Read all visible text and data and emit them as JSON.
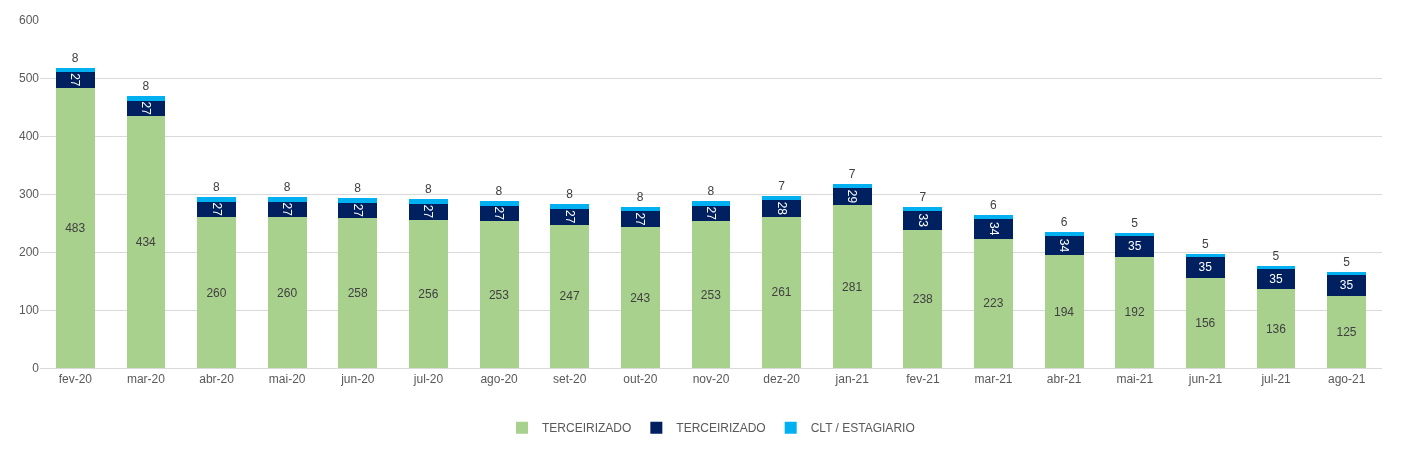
{
  "chart_data": {
    "type": "bar",
    "stacked": true,
    "data_labels": true,
    "grid": "y",
    "legend": "bottom",
    "categories": [
      "fev-20",
      "mar-20",
      "abr-20",
      "mai-20",
      "jun-20",
      "jul-20",
      "ago-20",
      "set-20",
      "out-20",
      "nov-20",
      "dez-20",
      "jan-21",
      "fev-21",
      "mar-21",
      "abr-21",
      "mai-21",
      "jun-21",
      "jul-21",
      "ago-21"
    ],
    "ylim": [
      0,
      600
    ],
    "yticks": [
      0,
      100,
      200,
      300,
      400,
      500,
      600
    ],
    "series": [
      {
        "name": "TERCEIRIZADO",
        "color": "#a9d18e",
        "values": [
          483,
          434,
          260,
          260,
          258,
          256,
          253,
          247,
          243,
          253,
          261,
          281,
          238,
          223,
          194,
          192,
          156,
          136,
          125
        ]
      },
      {
        "name": "TERCEIRIZADO",
        "color": "#002060",
        "values": [
          27,
          27,
          27,
          27,
          27,
          27,
          27,
          27,
          27,
          27,
          28,
          29,
          33,
          34,
          34,
          35,
          35,
          35,
          35
        ]
      },
      {
        "name": "CLT / ESTAGIARIO",
        "color": "#00b0f0",
        "values": [
          8,
          8,
          8,
          8,
          8,
          8,
          8,
          8,
          8,
          8,
          7,
          7,
          7,
          6,
          6,
          5,
          5,
          5,
          5
        ]
      }
    ]
  }
}
